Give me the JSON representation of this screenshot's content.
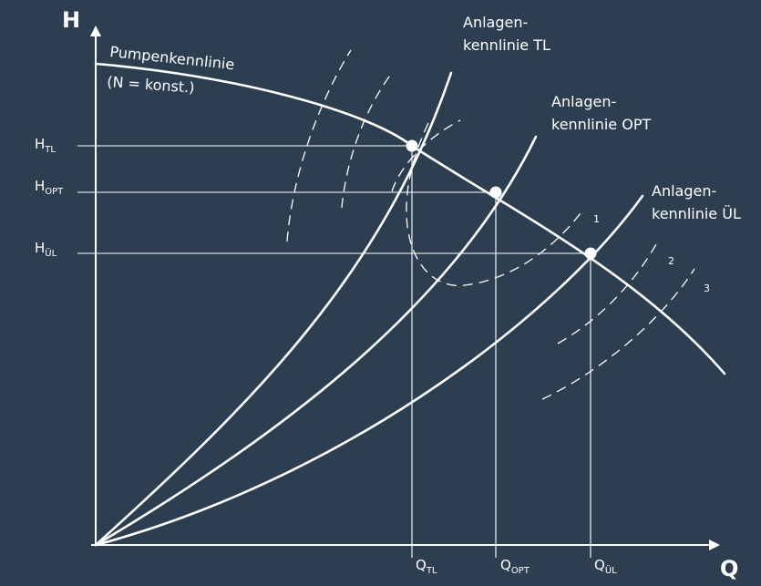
{
  "axes": {
    "y_name": "H",
    "x_name": "Q"
  },
  "pump_curve": {
    "label": "Pumpenkennlinie",
    "condition": "(N = konst.)"
  },
  "system_curves": [
    {
      "line1": "Anlagen-",
      "line2": "kennlinie TL"
    },
    {
      "line1": "Anlagen-",
      "line2": "kennlinie OPT"
    },
    {
      "line1": "Anlagen-",
      "line2": "kennlinie ÜL"
    }
  ],
  "operating_points": [
    {
      "h_main": "H",
      "h_sub": "TL",
      "q_main": "Q",
      "q_sub": "TL"
    },
    {
      "h_main": "H",
      "h_sub": "OPT",
      "q_main": "Q",
      "q_sub": "OPT"
    },
    {
      "h_main": "H",
      "h_sub": "ÜL",
      "q_main": "Q",
      "q_sub": "ÜL"
    }
  ],
  "dashed_zone_labels": [
    "1",
    "2",
    "3"
  ]
}
